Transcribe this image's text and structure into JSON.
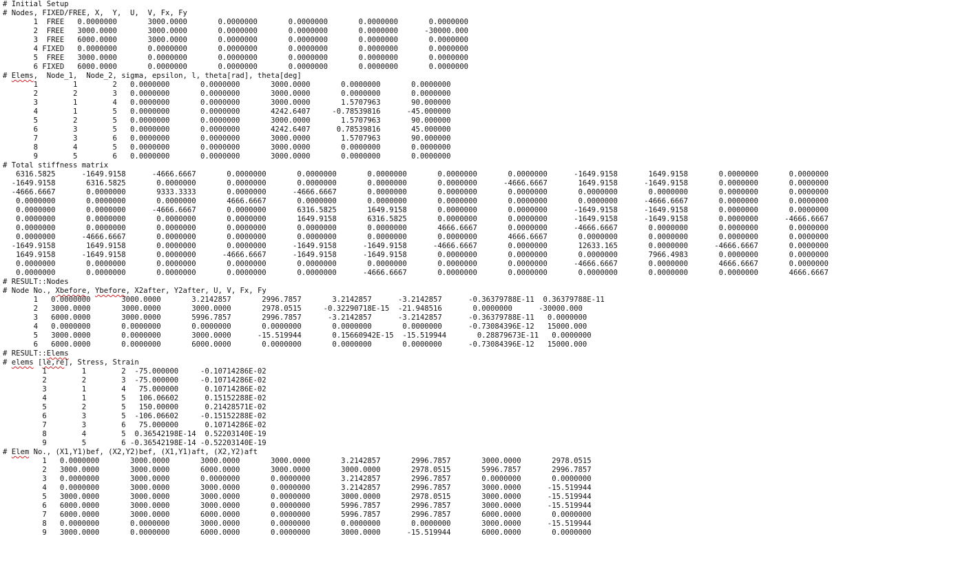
{
  "document": {
    "lines": [
      "# Initial Setup",
      "# Nodes, FIXED/FREE, X,  Y,  U,  V, Fx, Fy",
      "       1  FREE   0.0000000       3000.0000       0.0000000       0.0000000       0.0000000       0.0000000",
      "       2  FREE   3000.0000       3000.0000       0.0000000       0.0000000       0.0000000      -30000.000",
      "       3  FREE   6000.0000       3000.0000       0.0000000       0.0000000       0.0000000       0.0000000",
      "       4 FIXED   0.0000000       0.0000000       0.0000000       0.0000000       0.0000000       0.0000000",
      "       5  FREE   3000.0000       0.0000000       0.0000000       0.0000000       0.0000000       0.0000000",
      "       6 FIXED   6000.0000       0.0000000       0.0000000       0.0000000       0.0000000       0.0000000",
      "# Elems,  Node_1,  Node_2, sigma, epsilon, l, theta[rad], theta[deg]",
      "       1        1        2   0.0000000       0.0000000       3000.0000       0.0000000       0.0000000",
      "       2        2        3   0.0000000       0.0000000       3000.0000       0.0000000       0.0000000",
      "       3        1        4   0.0000000       0.0000000       3000.0000       1.5707963       90.000000",
      "       4        1        5   0.0000000       0.0000000       4242.6407     -0.78539816      -45.000000",
      "       5        2        5   0.0000000       0.0000000       3000.0000       1.5707963       90.000000",
      "       6        3        5   0.0000000       0.0000000       4242.6407      0.78539816       45.000000",
      "       7        3        6   0.0000000       0.0000000       3000.0000       1.5707963       90.000000",
      "       8        4        5   0.0000000       0.0000000       3000.0000       0.0000000       0.0000000",
      "       9        5        6   0.0000000       0.0000000       3000.0000       0.0000000       0.0000000",
      "# Total stiffness matrix",
      "   6316.5825      -1649.9158      -4666.6667       0.0000000       0.0000000       0.0000000       0.0000000       0.0000000      -1649.9158       1649.9158       0.0000000       0.0000000",
      "  -1649.9158       6316.5825       0.0000000       0.0000000       0.0000000       0.0000000       0.0000000      -4666.6667       1649.9158      -1649.9158       0.0000000       0.0000000",
      "  -4666.6667       0.0000000       9333.3333       0.0000000      -4666.6667       0.0000000       0.0000000       0.0000000       0.0000000       0.0000000       0.0000000       0.0000000",
      "   0.0000000       0.0000000       0.0000000       4666.6667       0.0000000       0.0000000       0.0000000       0.0000000       0.0000000      -4666.6667       0.0000000       0.0000000",
      "   0.0000000       0.0000000      -4666.6667       0.0000000       6316.5825       1649.9158       0.0000000       0.0000000      -1649.9158      -1649.9158       0.0000000       0.0000000",
      "   0.0000000       0.0000000       0.0000000       0.0000000       1649.9158       6316.5825       0.0000000       0.0000000      -1649.9158      -1649.9158       0.0000000      -4666.6667",
      "   0.0000000       0.0000000       0.0000000       0.0000000       0.0000000       0.0000000       4666.6667       0.0000000      -4666.6667       0.0000000       0.0000000       0.0000000",
      "   0.0000000      -4666.6667       0.0000000       0.0000000       0.0000000       0.0000000       0.0000000       4666.6667       0.0000000       0.0000000       0.0000000       0.0000000",
      "  -1649.9158       1649.9158       0.0000000       0.0000000      -1649.9158      -1649.9158      -4666.6667       0.0000000       12633.165       0.0000000      -4666.6667       0.0000000",
      "   1649.9158      -1649.9158       0.0000000      -4666.6667      -1649.9158      -1649.9158       0.0000000       0.0000000       0.0000000       7966.4983       0.0000000       0.0000000",
      "   0.0000000       0.0000000       0.0000000       0.0000000       0.0000000       0.0000000       0.0000000       0.0000000      -4666.6667       0.0000000       4666.6667       0.0000000",
      "   0.0000000       0.0000000       0.0000000       0.0000000       0.0000000      -4666.6667       0.0000000       0.0000000       0.0000000       0.0000000       0.0000000       4666.6667",
      "# RESULT::Nodes",
      "# Node No., Xbefore, Ybefore, X2after, Y2after, U, V, Fx, Fy",
      "       1   0.0000000       3000.0000       3.2142857       2996.7857       3.2142857      -3.2142857      -0.36379788E-11  0.36379788E-11",
      "       2   3000.0000       3000.0000       3000.0000       2978.0515     -0.32290718E-15  -21.948516       0.0000000      -30000.000",
      "       3   6000.0000       3000.0000       5996.7857       2996.7857      -3.2142857      -3.2142857      -0.36379788E-11   0.0000000",
      "       4   0.0000000       0.0000000       0.0000000       0.0000000       0.0000000       0.0000000      -0.73084396E-12   15000.000",
      "       5   3000.0000       0.0000000       3000.0000      -15.519944       0.15660942E-15  -15.519944       0.28879673E-11   0.0000000",
      "       6   6000.0000       0.0000000       6000.0000       0.0000000       0.0000000       0.0000000      -0.73084396E-12   15000.000",
      "# RESULT::Elems",
      "# elems [le,re], Stress, Strain",
      "         1        1        2  -75.000000     -0.10714286E-02",
      "         2        2        3  -75.000000     -0.10714286E-02",
      "         3        1        4   75.000000      0.10714286E-02",
      "         4        1        5   106.06602      0.15152288E-02",
      "         5        2        5   150.00000      0.21428571E-02",
      "         6        3        5  -106.06602     -0.15152288E-02",
      "         7        3        6   75.000000      0.10714286E-02",
      "         8        4        5  0.36542198E-14  0.52203140E-19",
      "         9        5        6 -0.36542198E-14 -0.52203140E-19",
      "# Elem No., (X1,Y1)bef, (X2,Y2)bef, (X1,Y1)aft, (X2,Y2)aft",
      "         1   0.0000000       3000.0000       3000.0000       3000.0000       3.2142857       2996.7857       3000.0000       2978.0515",
      "         2   3000.0000       3000.0000       6000.0000       3000.0000       3000.0000       2978.0515       5996.7857       2996.7857",
      "         3   0.0000000       3000.0000       0.0000000       0.0000000       3.2142857       2996.7857       0.0000000       0.0000000",
      "         4   0.0000000       3000.0000       3000.0000       0.0000000       3.2142857       2996.7857       3000.0000      -15.519944",
      "         5   3000.0000       3000.0000       3000.0000       0.0000000       3000.0000       2978.0515       3000.0000      -15.519944",
      "         6   6000.0000       3000.0000       3000.0000       0.0000000       5996.7857       2996.7857       3000.0000      -15.519944",
      "         7   6000.0000       3000.0000       6000.0000       0.0000000       5996.7857       2996.7857       6000.0000       0.0000000",
      "         8   0.0000000       0.0000000       3000.0000       0.0000000       0.0000000       0.0000000       3000.0000      -15.519944",
      "         9   3000.0000       0.0000000       6000.0000       0.0000000       3000.0000      -15.519944       6000.0000       0.0000000"
    ],
    "spellcheck_words": [
      "Elems",
      "Xbefore",
      "Ybefore",
      "Elems",
      "elems",
      "le,re",
      "Elem"
    ]
  }
}
